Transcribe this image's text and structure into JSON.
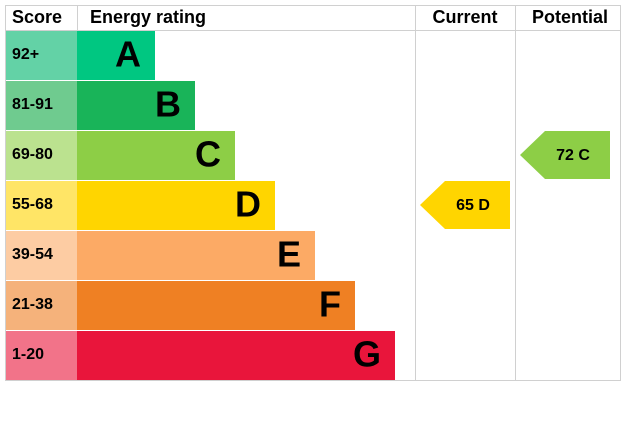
{
  "header": {
    "score": "Score",
    "rating": "Energy rating",
    "current": "Current",
    "potential": "Potential"
  },
  "bands": [
    {
      "score": "92+",
      "letter": "A",
      "color": "#00c781",
      "score_color": "#63d2a6"
    },
    {
      "score": "81-91",
      "letter": "B",
      "color": "#19b459",
      "score_color": "#6fcb8f"
    },
    {
      "score": "69-80",
      "letter": "C",
      "color": "#8dce46",
      "score_color": "#bbe28f"
    },
    {
      "score": "55-68",
      "letter": "D",
      "color": "#ffd500",
      "score_color": "#ffe566"
    },
    {
      "score": "39-54",
      "letter": "E",
      "color": "#fcaa65",
      "score_color": "#fdcca3"
    },
    {
      "score": "21-38",
      "letter": "F",
      "color": "#ef8023",
      "score_color": "#f5b27b"
    },
    {
      "score": "1-20",
      "letter": "G",
      "color": "#e9153b",
      "score_color": "#f27389"
    }
  ],
  "current": {
    "score": 65,
    "rating": "D"
  },
  "potential": {
    "score": 72,
    "rating": "C"
  }
}
